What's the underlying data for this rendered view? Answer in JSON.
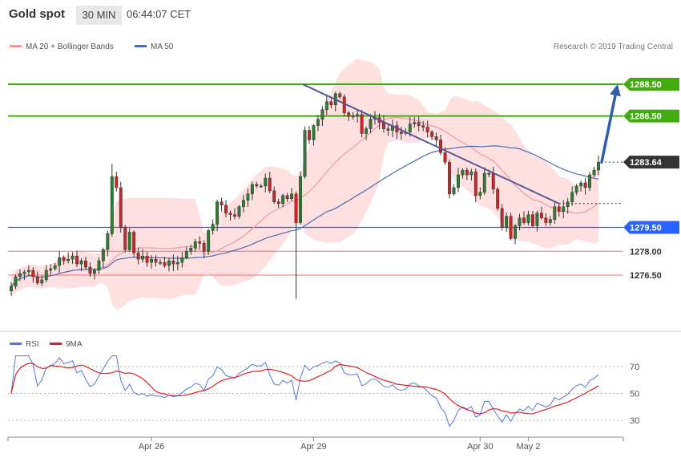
{
  "header": {
    "instrument": "Gold spot",
    "timeframe": "30 MIN",
    "time": "06:44:07 CET"
  },
  "legend": {
    "ma20": "MA 20 + Bollinger Bands",
    "ma50": "MA 50",
    "credit": "Research © 2019 Trading Central"
  },
  "colors": {
    "green_level": "#44aa11",
    "blue_level": "#2962ff",
    "red_level": "#f07070",
    "candle_up": "#2e7d32",
    "candle_down": "#c62828",
    "band": "#ffd6d6",
    "ma20": "#f29a9a",
    "ma50": "#4a6eb0",
    "trend": "#55579a",
    "arrow": "#2f5ea8",
    "rsi": "#5577dd",
    "rsi_ma": "#e02020"
  },
  "chart_data": [
    {
      "type": "candlestick",
      "title": "Gold spot",
      "ylim": [
        1273.0,
        1290.0
      ],
      "current_price": "1283.64",
      "levels": [
        {
          "value": 1288.5,
          "label": "1288.50",
          "style": "green"
        },
        {
          "value": 1286.5,
          "label": "1286.50",
          "style": "green"
        },
        {
          "value": 1279.5,
          "label": "1279.50",
          "style": "blue"
        },
        {
          "value": 1278.0,
          "label": "1278.00",
          "style": "red"
        },
        {
          "value": 1276.5,
          "label": "1276.50",
          "style": "red"
        }
      ],
      "x_ticks": [
        {
          "label": "Apr 26",
          "index": 32
        },
        {
          "label": "Apr 29",
          "index": 69
        },
        {
          "label": "Apr 30",
          "index": 107
        },
        {
          "label": "May 2",
          "index": 118
        }
      ],
      "series": [
        {
          "name": "MA 20 + Bollinger Bands"
        },
        {
          "name": "MA 50"
        }
      ],
      "close": [
        1275.8,
        1276.4,
        1276.6,
        1276.7,
        1276.8,
        1276.4,
        1276.0,
        1276.2,
        1276.8,
        1276.9,
        1277.1,
        1277.6,
        1277.4,
        1277.5,
        1277.7,
        1277.2,
        1277.4,
        1277.0,
        1276.6,
        1276.8,
        1277.4,
        1278.1,
        1279.1,
        1282.7,
        1282.0,
        1279.5,
        1278.1,
        1279.2,
        1277.9,
        1277.5,
        1277.7,
        1277.3,
        1277.5,
        1277.3,
        1277.3,
        1277.1,
        1277.4,
        1277.2,
        1277.3,
        1277.6,
        1278.0,
        1278.2,
        1278.6,
        1278.5,
        1278.0,
        1279.3,
        1279.7,
        1281.1,
        1280.9,
        1280.4,
        1280.3,
        1280.2,
        1280.8,
        1281.2,
        1281.6,
        1282.2,
        1282.1,
        1282.1,
        1282.6,
        1281.8,
        1281.1,
        1281.0,
        1281.5,
        1281.3,
        1281.6,
        1279.8,
        1282.7,
        1285.6,
        1285.0,
        1285.9,
        1286.3,
        1286.9,
        1287.4,
        1287.2,
        1287.9,
        1287.7,
        1286.7,
        1286.5,
        1286.5,
        1286.6,
        1285.4,
        1285.7,
        1286.3,
        1286.4,
        1286.1,
        1285.7,
        1285.6,
        1285.9,
        1285.5,
        1285.4,
        1285.5,
        1286.0,
        1286.1,
        1285.9,
        1285.8,
        1285.5,
        1285.2,
        1285.0,
        1284.2,
        1283.6,
        1281.6,
        1282.0,
        1282.8,
        1283.1,
        1282.8,
        1283.0,
        1281.5,
        1281.7,
        1282.9,
        1282.9,
        1281.9,
        1280.7,
        1279.5,
        1280.2,
        1278.8,
        1279.6,
        1280.1,
        1279.8,
        1280.3,
        1279.6,
        1280.4,
        1280.1,
        1279.8,
        1280.0,
        1280.8,
        1280.5,
        1280.8,
        1281.1,
        1281.7,
        1282.1,
        1282.3,
        1282.0,
        1282.8,
        1283.1,
        1283.6
      ]
    },
    {
      "type": "line",
      "title": "RSI",
      "ylim": [
        20,
        80
      ],
      "y_ticks": [
        30,
        50,
        70
      ],
      "series": [
        {
          "name": "RSI"
        },
        {
          "name": "9MA"
        }
      ]
    }
  ]
}
